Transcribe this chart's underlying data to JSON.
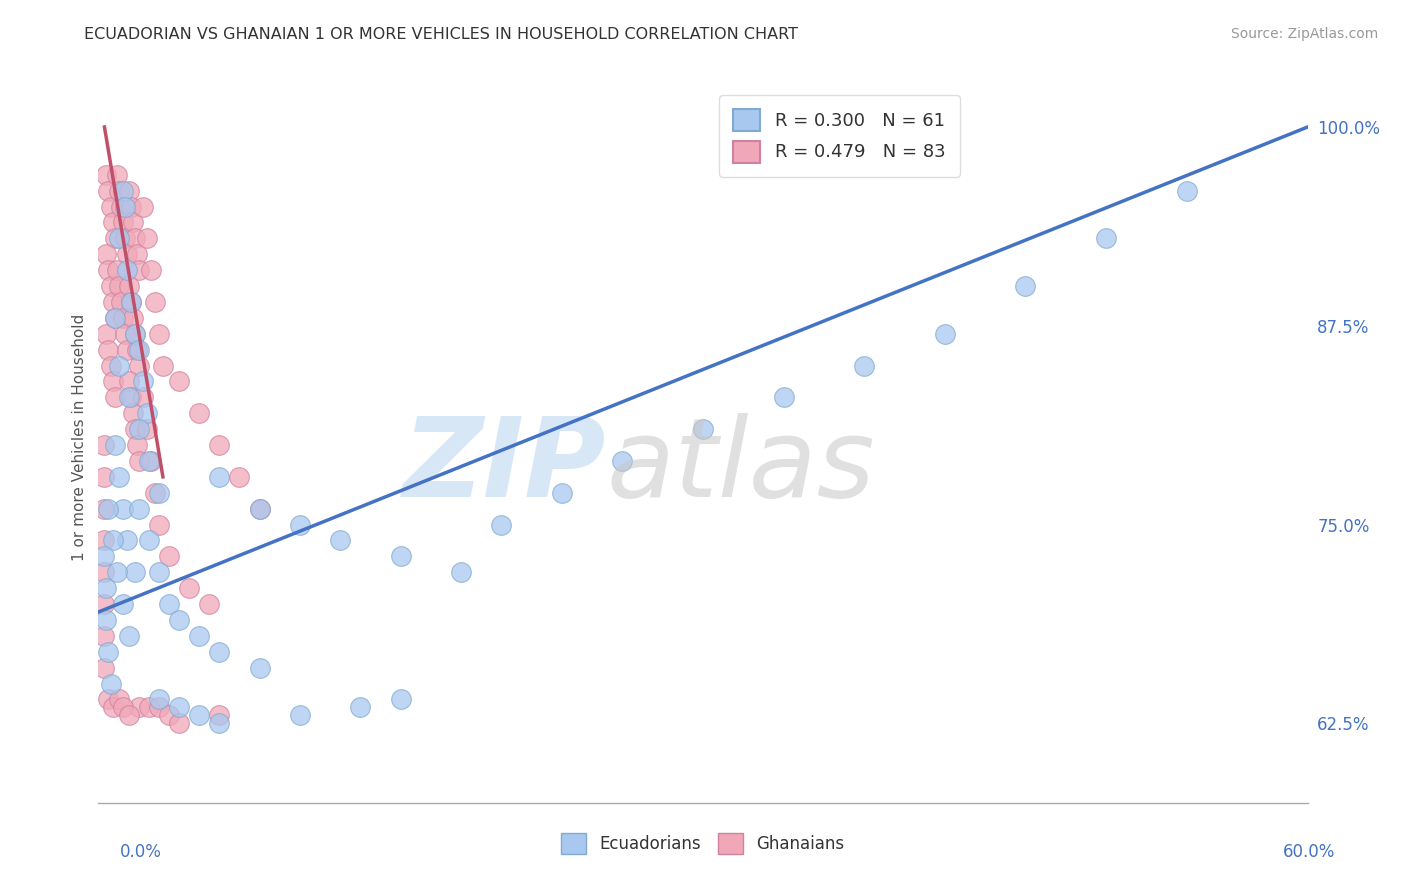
{
  "title": "ECUADORIAN VS GHANAIAN 1 OR MORE VEHICLES IN HOUSEHOLD CORRELATION CHART",
  "source_text": "Source: ZipAtlas.com",
  "ylabel": "1 or more Vehicles in Household",
  "ytick_labels": [
    "62.5%",
    "75.0%",
    "87.5%",
    "100.0%"
  ],
  "ytick_values": [
    0.625,
    0.75,
    0.875,
    1.0
  ],
  "xlim": [
    0.0,
    0.6
  ],
  "ylim": [
    0.575,
    1.035
  ],
  "legend_r_ecu": "R = 0.300",
  "legend_n_ecu": "N = 61",
  "legend_r_gha": "R = 0.479",
  "legend_n_gha": "N = 83",
  "ecuadorian_color": "#a8c8f0",
  "ghanaian_color": "#f0a8b8",
  "trend_ecuadorian_color": "#4472c4",
  "trend_ghanaian_color": "#c0506a",
  "ecuadorian_points": [
    [
      0.008,
      0.88
    ],
    [
      0.01,
      0.93
    ],
    [
      0.012,
      0.96
    ],
    [
      0.013,
      0.95
    ],
    [
      0.014,
      0.91
    ],
    [
      0.016,
      0.89
    ],
    [
      0.018,
      0.87
    ],
    [
      0.02,
      0.86
    ],
    [
      0.022,
      0.84
    ],
    [
      0.024,
      0.82
    ],
    [
      0.01,
      0.85
    ],
    [
      0.015,
      0.83
    ],
    [
      0.02,
      0.81
    ],
    [
      0.025,
      0.79
    ],
    [
      0.03,
      0.77
    ],
    [
      0.008,
      0.8
    ],
    [
      0.01,
      0.78
    ],
    [
      0.012,
      0.76
    ],
    [
      0.014,
      0.74
    ],
    [
      0.018,
      0.72
    ],
    [
      0.005,
      0.76
    ],
    [
      0.007,
      0.74
    ],
    [
      0.009,
      0.72
    ],
    [
      0.012,
      0.7
    ],
    [
      0.015,
      0.68
    ],
    [
      0.02,
      0.76
    ],
    [
      0.025,
      0.74
    ],
    [
      0.03,
      0.72
    ],
    [
      0.035,
      0.7
    ],
    [
      0.04,
      0.69
    ],
    [
      0.05,
      0.68
    ],
    [
      0.06,
      0.67
    ],
    [
      0.08,
      0.66
    ],
    [
      0.004,
      0.69
    ],
    [
      0.005,
      0.67
    ],
    [
      0.006,
      0.65
    ],
    [
      0.003,
      0.73
    ],
    [
      0.004,
      0.71
    ],
    [
      0.06,
      0.78
    ],
    [
      0.08,
      0.76
    ],
    [
      0.1,
      0.75
    ],
    [
      0.12,
      0.74
    ],
    [
      0.15,
      0.73
    ],
    [
      0.18,
      0.72
    ],
    [
      0.2,
      0.75
    ],
    [
      0.23,
      0.77
    ],
    [
      0.26,
      0.79
    ],
    [
      0.3,
      0.81
    ],
    [
      0.34,
      0.83
    ],
    [
      0.38,
      0.85
    ],
    [
      0.42,
      0.87
    ],
    [
      0.46,
      0.9
    ],
    [
      0.5,
      0.93
    ],
    [
      0.54,
      0.96
    ],
    [
      0.03,
      0.64
    ],
    [
      0.04,
      0.635
    ],
    [
      0.05,
      0.63
    ],
    [
      0.06,
      0.625
    ],
    [
      0.1,
      0.63
    ],
    [
      0.13,
      0.635
    ],
    [
      0.15,
      0.64
    ]
  ],
  "ghanaian_points": [
    [
      0.004,
      0.97
    ],
    [
      0.005,
      0.96
    ],
    [
      0.006,
      0.95
    ],
    [
      0.007,
      0.94
    ],
    [
      0.008,
      0.93
    ],
    [
      0.004,
      0.92
    ],
    [
      0.005,
      0.91
    ],
    [
      0.006,
      0.9
    ],
    [
      0.007,
      0.89
    ],
    [
      0.008,
      0.88
    ],
    [
      0.004,
      0.87
    ],
    [
      0.005,
      0.86
    ],
    [
      0.006,
      0.85
    ],
    [
      0.007,
      0.84
    ],
    [
      0.008,
      0.83
    ],
    [
      0.009,
      0.97
    ],
    [
      0.01,
      0.96
    ],
    [
      0.011,
      0.95
    ],
    [
      0.012,
      0.94
    ],
    [
      0.013,
      0.93
    ],
    [
      0.014,
      0.92
    ],
    [
      0.009,
      0.91
    ],
    [
      0.01,
      0.9
    ],
    [
      0.011,
      0.89
    ],
    [
      0.012,
      0.88
    ],
    [
      0.013,
      0.87
    ],
    [
      0.014,
      0.86
    ],
    [
      0.015,
      0.96
    ],
    [
      0.016,
      0.95
    ],
    [
      0.017,
      0.94
    ],
    [
      0.018,
      0.93
    ],
    [
      0.019,
      0.92
    ],
    [
      0.02,
      0.91
    ],
    [
      0.015,
      0.9
    ],
    [
      0.016,
      0.89
    ],
    [
      0.017,
      0.88
    ],
    [
      0.018,
      0.87
    ],
    [
      0.019,
      0.86
    ],
    [
      0.02,
      0.85
    ],
    [
      0.015,
      0.84
    ],
    [
      0.016,
      0.83
    ],
    [
      0.017,
      0.82
    ],
    [
      0.018,
      0.81
    ],
    [
      0.019,
      0.8
    ],
    [
      0.02,
      0.79
    ],
    [
      0.022,
      0.95
    ],
    [
      0.024,
      0.93
    ],
    [
      0.026,
      0.91
    ],
    [
      0.028,
      0.89
    ],
    [
      0.03,
      0.87
    ],
    [
      0.032,
      0.85
    ],
    [
      0.022,
      0.83
    ],
    [
      0.024,
      0.81
    ],
    [
      0.026,
      0.79
    ],
    [
      0.028,
      0.77
    ],
    [
      0.03,
      0.75
    ],
    [
      0.003,
      0.8
    ],
    [
      0.003,
      0.78
    ],
    [
      0.003,
      0.76
    ],
    [
      0.003,
      0.74
    ],
    [
      0.003,
      0.72
    ],
    [
      0.003,
      0.7
    ],
    [
      0.003,
      0.68
    ],
    [
      0.003,
      0.66
    ],
    [
      0.005,
      0.64
    ],
    [
      0.007,
      0.635
    ],
    [
      0.04,
      0.84
    ],
    [
      0.05,
      0.82
    ],
    [
      0.06,
      0.8
    ],
    [
      0.07,
      0.78
    ],
    [
      0.08,
      0.76
    ],
    [
      0.035,
      0.73
    ],
    [
      0.045,
      0.71
    ],
    [
      0.055,
      0.7
    ],
    [
      0.06,
      0.63
    ],
    [
      0.02,
      0.635
    ],
    [
      0.025,
      0.635
    ],
    [
      0.03,
      0.635
    ],
    [
      0.035,
      0.63
    ],
    [
      0.04,
      0.625
    ],
    [
      0.01,
      0.64
    ],
    [
      0.012,
      0.635
    ],
    [
      0.015,
      0.63
    ]
  ],
  "trend_ecu_x0": 0.0,
  "trend_ecu_y0": 0.695,
  "trend_ecu_x1": 0.6,
  "trend_ecu_y1": 1.0,
  "trend_gha_x0": 0.003,
  "trend_gha_y0": 1.0,
  "trend_gha_x1": 0.032,
  "trend_gha_y1": 0.78
}
